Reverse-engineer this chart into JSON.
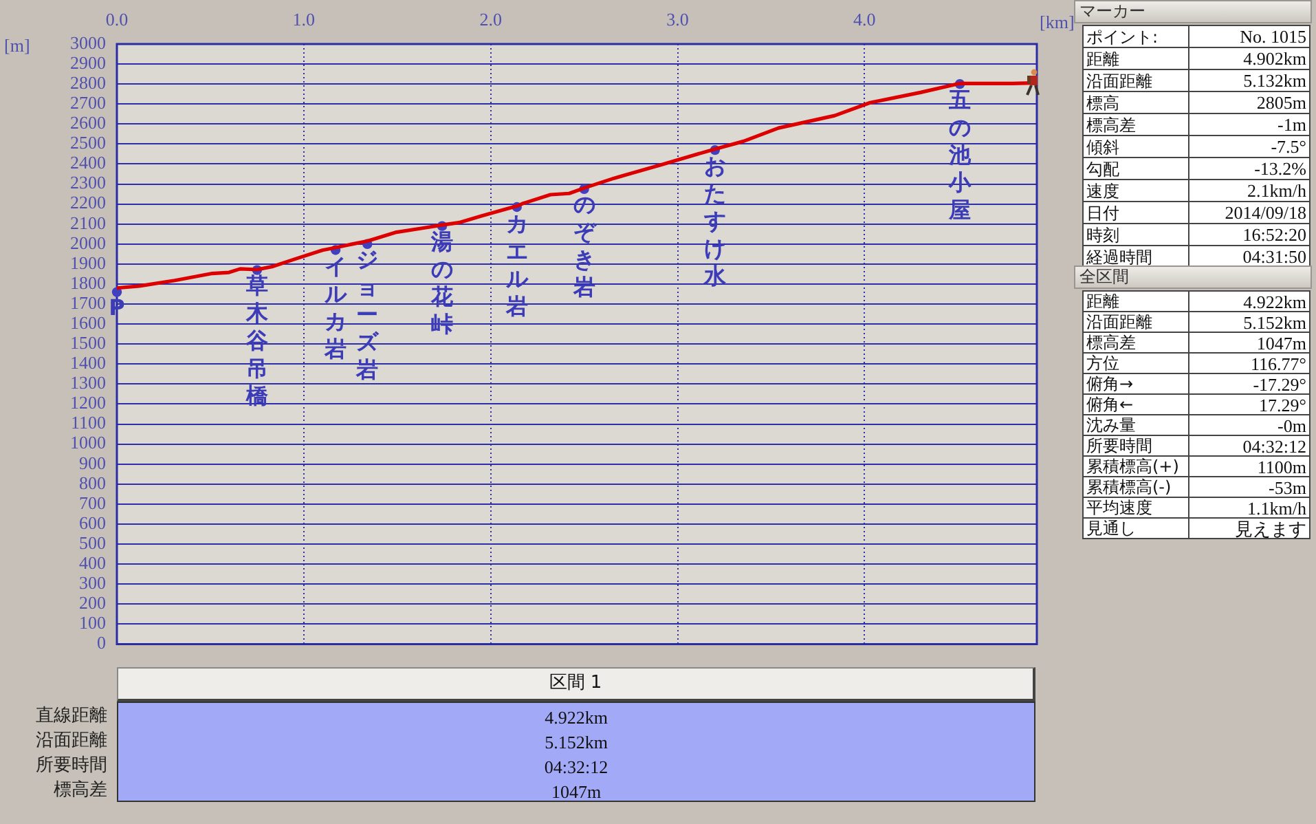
{
  "chart_data": [
    {
      "type": "line",
      "xlabel": "[km]",
      "ylabel": "[m]",
      "xlim": [
        0,
        4.922
      ],
      "xticks": [
        {
          "value": 0,
          "label": "0.0"
        },
        {
          "value": 1,
          "label": "1.0"
        },
        {
          "value": 2,
          "label": "2.0"
        },
        {
          "value": 3,
          "label": "3.0"
        },
        {
          "value": 4,
          "label": "4.0"
        }
      ],
      "ylim": [
        0,
        3000
      ],
      "yticks": [
        0,
        100,
        200,
        300,
        400,
        500,
        600,
        700,
        800,
        900,
        1000,
        1100,
        1200,
        1300,
        1400,
        1500,
        1600,
        1700,
        1800,
        1900,
        2000,
        2100,
        2200,
        2300,
        2400,
        2500,
        2600,
        2700,
        2800,
        2900,
        3000
      ],
      "grid": true,
      "series": [
        {
          "type": "line",
          "color": "#dd0000",
          "x": [
            0,
            0.12,
            0.31,
            0.51,
            0.6,
            0.66,
            0.75,
            0.83,
            0.95,
            1.1,
            1.17,
            1.24,
            1.34,
            1.49,
            1.64,
            1.74,
            1.83,
            1.95,
            2.14,
            2.17,
            2.32,
            2.42,
            2.5,
            2.66,
            2.91,
            3.2,
            3.35,
            3.54,
            3.84,
            4.03,
            4.3,
            4.51,
            4.57,
            4.79,
            4.9
          ],
          "values": [
            1780,
            1790,
            1818,
            1853,
            1858,
            1876,
            1872,
            1887,
            1924,
            1969,
            1982,
            1996,
            2015,
            2058,
            2080,
            2095,
            2107,
            2140,
            2190,
            2202,
            2247,
            2253,
            2280,
            2329,
            2396,
            2475,
            2513,
            2580,
            2642,
            2707,
            2758,
            2803,
            2803,
            2803,
            2805
          ]
        },
        {
          "type": "scatter",
          "color": "#4040c0",
          "marker": "circle",
          "x": [
            0,
            0.75,
            1.17,
            1.34,
            1.74,
            2.14,
            2.5,
            3.2,
            4.51
          ],
          "values": [
            1760,
            1870,
            1970,
            2000,
            2090,
            2185,
            2275,
            2470,
            2800
          ]
        }
      ],
      "annotations": [
        {
          "text": "P",
          "x": 0,
          "y": 1760
        },
        {
          "text": "草木谷吊橋",
          "x": 0.75,
          "y": 1870
        },
        {
          "text": "イルカ岩",
          "x": 1.17,
          "y": 1970
        },
        {
          "text": "ジョーズ岩",
          "x": 1.34,
          "y": 2000
        },
        {
          "text": "湯の花峠",
          "x": 1.74,
          "y": 2090
        },
        {
          "text": "カエル岩",
          "x": 2.14,
          "y": 2185
        },
        {
          "text": "のぞき岩",
          "x": 2.5,
          "y": 2275
        },
        {
          "text": "おたすけ水",
          "x": 3.2,
          "y": 2470
        },
        {
          "text": "五の池小屋",
          "x": 4.51,
          "y": 2800
        }
      ]
    },
    {
      "type": "other",
      "title": "マーカー",
      "annotations": [
        "ポイント:",
        "No. 1015",
        "距離",
        "4.902km",
        "沿面距離",
        "5.132km",
        "標高",
        "2805m",
        "標高差",
        "-1m",
        "傾斜",
        "-7.5°",
        "勾配",
        "-13.2%",
        "速度",
        "2.1km/h",
        "日付",
        "2014/09/18",
        "時刻",
        "16:52:20",
        "経過時間",
        "04:31:50"
      ]
    },
    {
      "type": "other",
      "title": "全区間",
      "annotations": [
        "距離",
        "4.922km",
        "沿面距離",
        "5.152km",
        "標高差",
        "1047m",
        "方位",
        "116.77°",
        "俯角→",
        "-17.29°",
        "俯角←",
        "17.29°",
        "沈み量",
        "-0m",
        "所要時間",
        "04:32:12",
        "累積標高(+)",
        "1100m",
        "累積標高(-)",
        "-53m",
        "平均速度",
        "1.1km/h",
        "見通し",
        "見えます"
      ]
    },
    {
      "type": "other",
      "title": "区間 1",
      "annotations": [
        "直線距離",
        "4.922km",
        "沿面距離",
        "5.152km",
        "所要時間",
        "04:32:12",
        "標高差",
        "1047m"
      ]
    }
  ]
}
